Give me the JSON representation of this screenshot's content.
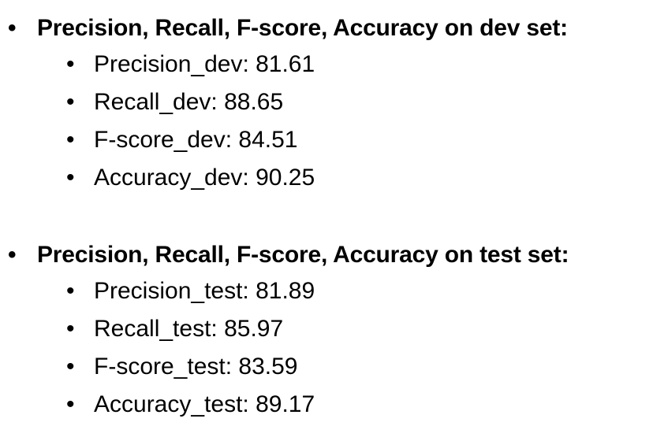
{
  "bullet_glyph": "•",
  "sections": [
    {
      "heading": "Precision, Recall, F-score, Accuracy on dev set:",
      "items": [
        "Precision_dev: 81.61",
        "Recall_dev: 88.65",
        "F-score_dev: 84.51",
        "Accuracy_dev: 90.25"
      ]
    },
    {
      "heading": "Precision, Recall, F-score, Accuracy on test set:",
      "items": [
        "Precision_test: 81.89",
        "Recall_test: 85.97",
        "F-score_test: 83.59",
        "Accuracy_test: 89.17"
      ]
    }
  ]
}
